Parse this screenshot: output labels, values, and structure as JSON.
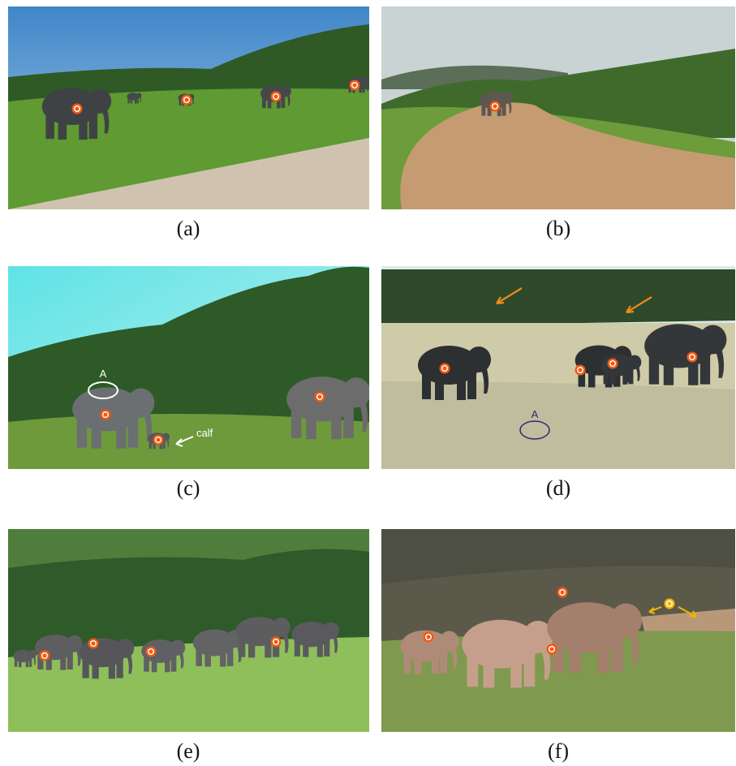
{
  "panels": [
    {
      "caption": "(a)"
    },
    {
      "caption": "(b)"
    },
    {
      "caption": "(c)",
      "annotations": [
        "A",
        "calf"
      ]
    },
    {
      "caption": "(d)",
      "annotations": [
        "A"
      ]
    },
    {
      "caption": "(e)"
    },
    {
      "caption": "(f)"
    }
  ]
}
